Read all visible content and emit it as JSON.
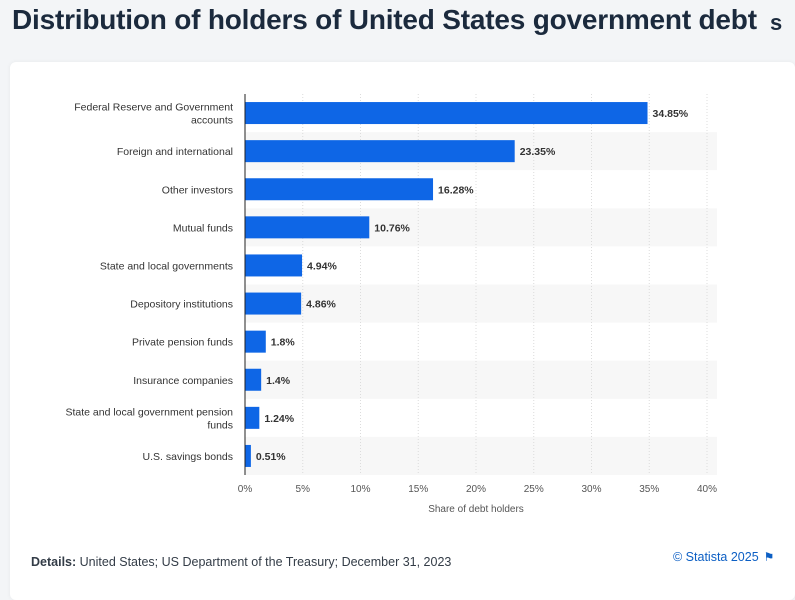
{
  "page": {
    "title": "Distribution of holders of United States government debt",
    "title_overflow_glyph": "s"
  },
  "chart_data": {
    "type": "bar",
    "orientation": "horizontal",
    "title": "Distribution of holders of United States government debt",
    "xlabel": "Share of debt holders",
    "ylabel": "",
    "xlim": [
      0,
      40
    ],
    "x_ticks": [
      "0%",
      "5%",
      "10%",
      "15%",
      "20%",
      "25%",
      "30%",
      "35%",
      "40%"
    ],
    "categories": [
      "Federal Reserve and Government accounts",
      "Foreign and international",
      "Other investors",
      "Mutual funds",
      "State and local governments",
      "Depository institutions",
      "Private pension funds",
      "Insurance companies",
      "State and local government pension funds",
      "U.S. savings bonds"
    ],
    "category_label_lines": [
      [
        "Federal Reserve and Government",
        "accounts"
      ],
      [
        "Foreign and international"
      ],
      [
        "Other investors"
      ],
      [
        "Mutual funds"
      ],
      [
        "State and local governments"
      ],
      [
        "Depository institutions"
      ],
      [
        "Private pension funds"
      ],
      [
        "Insurance companies"
      ],
      [
        "State and local government pension",
        "funds"
      ],
      [
        "U.S. savings bonds"
      ]
    ],
    "values": [
      34.85,
      23.35,
      16.28,
      10.76,
      4.94,
      4.86,
      1.8,
      1.4,
      1.24,
      0.51
    ],
    "value_labels": [
      "34.85%",
      "23.35%",
      "16.28%",
      "10.76%",
      "4.94%",
      "4.86%",
      "1.8%",
      "1.4%",
      "1.24%",
      "0.51%"
    ],
    "bar_color": "#0e66e6",
    "grid": true,
    "alternating_row_shading": true
  },
  "footer": {
    "details_label": "Details:",
    "details_text": "United States; US Department of the Treasury; December 31, 2023",
    "copyright": "© Statista 2025",
    "flag_icon": "flag-icon"
  },
  "colors": {
    "title": "#1b2a3d",
    "bar": "#0e66e6",
    "axis_text": "#555555",
    "link": "#0c5fc4",
    "row_shade": "#f7f7f7",
    "gridline": "#dcdcdc"
  }
}
